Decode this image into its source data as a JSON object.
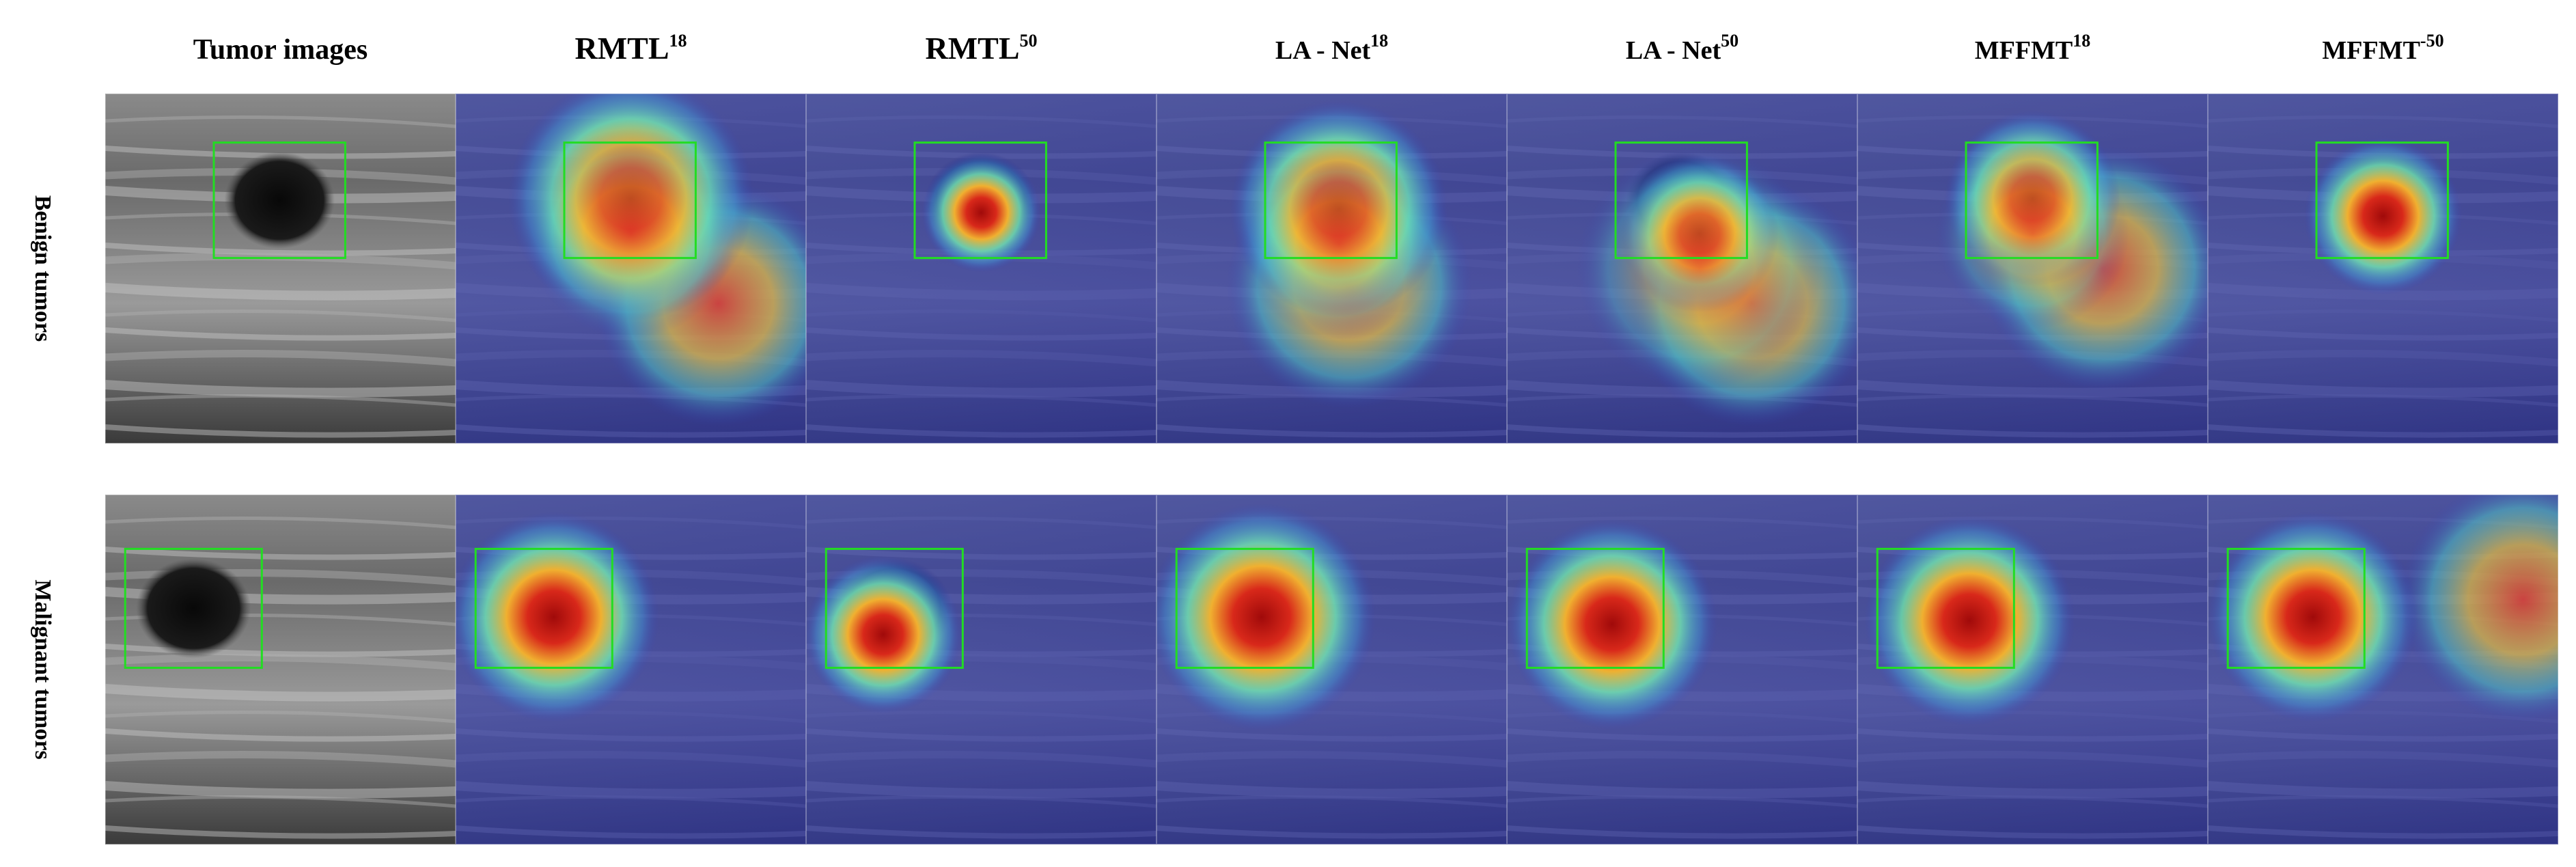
{
  "columns": [
    {
      "text": "Tumor images"
    },
    {
      "text": "RMTL",
      "sup": "18"
    },
    {
      "text": "RMTL",
      "sup": "50"
    },
    {
      "text": "LA - Net",
      "sup": "18"
    },
    {
      "text": "LA - Net",
      "sup": "50"
    },
    {
      "text": "MFFMT",
      "sup": "18"
    },
    {
      "text": "MFFMT",
      "sup": "-50"
    }
  ],
  "rows": [
    "Benign tumors",
    "Malignant tumors"
  ]
}
